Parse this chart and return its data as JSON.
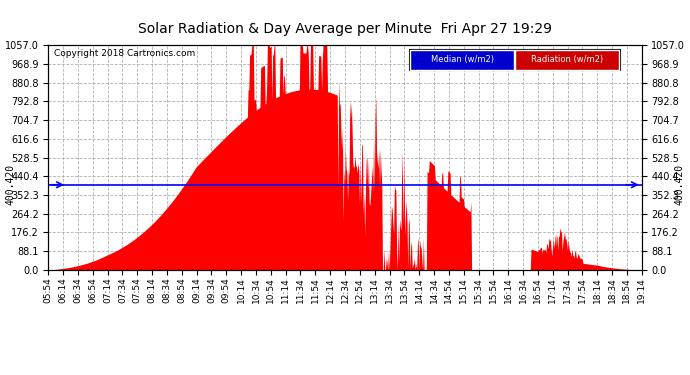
{
  "title": "Solar Radiation & Day Average per Minute  Fri Apr 27 19:29",
  "copyright": "Copyright 2018 Cartronics.com",
  "median_value": 400.42,
  "y_ticks": [
    0.0,
    88.1,
    176.2,
    264.2,
    352.3,
    440.4,
    528.5,
    616.6,
    704.7,
    792.8,
    880.8,
    968.9,
    1057.0
  ],
  "y_max": 1057.0,
  "y_min": 0.0,
  "bg_color": "#ffffff",
  "fill_color": "#ff0000",
  "line_color": "#0000ff",
  "grid_color": "#aaaaaa",
  "legend_median_bg": "#0000cc",
  "legend_radiation_bg": "#cc0000",
  "x_labels": [
    "05:54",
    "06:14",
    "06:34",
    "06:54",
    "07:14",
    "07:34",
    "07:54",
    "08:14",
    "08:34",
    "08:54",
    "09:14",
    "09:34",
    "09:54",
    "10:14",
    "10:34",
    "10:54",
    "11:14",
    "11:34",
    "11:54",
    "12:14",
    "12:34",
    "12:54",
    "13:14",
    "13:34",
    "13:54",
    "14:14",
    "14:34",
    "14:54",
    "15:14",
    "15:34",
    "15:54",
    "16:14",
    "16:34",
    "16:54",
    "17:14",
    "17:34",
    "17:54",
    "18:14",
    "18:34",
    "18:54",
    "19:14"
  ]
}
